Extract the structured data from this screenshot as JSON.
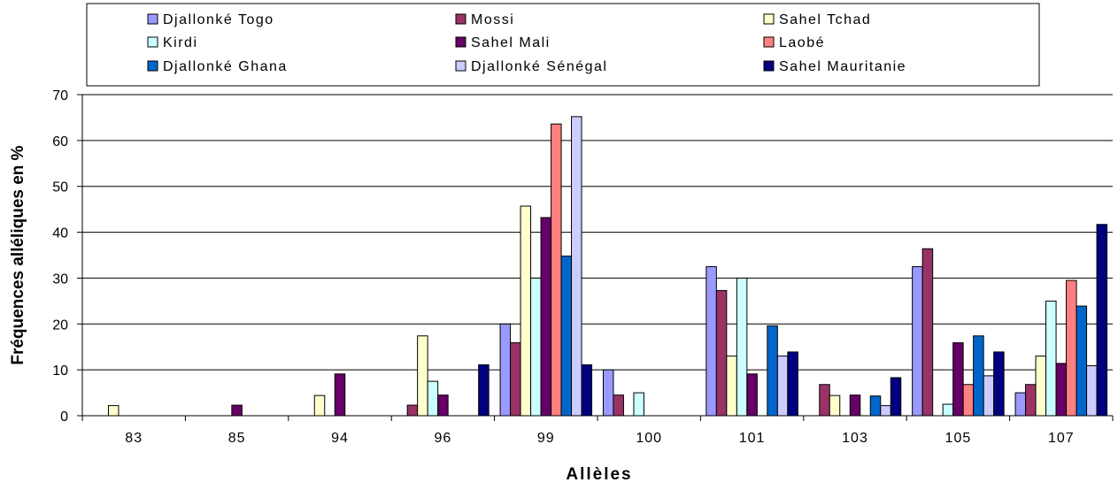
{
  "chart_data": {
    "type": "bar",
    "title": "",
    "xlabel": "Allèles",
    "ylabel": "Fréquences alléliques en %",
    "ylim": [
      0,
      70
    ],
    "yticks": [
      "0",
      "10",
      "20",
      "30",
      "40",
      "50",
      "60",
      "70"
    ],
    "categories": [
      "83",
      "85",
      "94",
      "96",
      "99",
      "100",
      "101",
      "103",
      "105",
      "107"
    ],
    "grid": true,
    "legend_position": "top",
    "series": [
      {
        "name": "Djallonké Togo",
        "color": "#9999ff",
        "values": [
          0,
          0,
          0,
          0,
          20,
          10,
          32.5,
          0,
          32.5,
          5
        ]
      },
      {
        "name": "Mossi",
        "color": "#993366",
        "values": [
          0,
          0,
          0,
          2.3,
          15.9,
          4.5,
          27.3,
          6.8,
          36.4,
          6.8
        ]
      },
      {
        "name": "Sahel Tchad",
        "color": "#ffffcc",
        "values": [
          2.2,
          0,
          4.4,
          17.4,
          45.7,
          0,
          13.0,
          4.4,
          0,
          13.0
        ]
      },
      {
        "name": "Kirdi",
        "color": "#ccffff",
        "values": [
          0,
          0,
          0,
          7.5,
          30,
          5,
          30,
          0,
          2.5,
          25
        ]
      },
      {
        "name": "Sahel Mali",
        "color": "#660066",
        "values": [
          0,
          2.3,
          9.1,
          4.5,
          43.2,
          0,
          9.1,
          4.5,
          15.9,
          11.4
        ]
      },
      {
        "name": "Laobé",
        "color": "#ff8080",
        "values": [
          0,
          0,
          0,
          0,
          63.6,
          0,
          0,
          0,
          6.8,
          29.5
        ]
      },
      {
        "name": "Djallonké Ghana",
        "color": "#0066cc",
        "values": [
          0,
          0,
          0,
          0,
          34.8,
          0,
          19.6,
          4.3,
          17.4,
          23.9
        ]
      },
      {
        "name": "Djallonké Sénégal",
        "color": "#ccccff",
        "values": [
          0,
          0,
          0,
          0,
          65.2,
          0,
          13.0,
          2.2,
          8.7,
          10.9
        ]
      },
      {
        "name": "Sahel Mauritanie",
        "color": "#000080",
        "values": [
          0,
          0,
          0,
          11.1,
          11.1,
          0,
          13.9,
          8.3,
          13.9,
          41.7
        ]
      }
    ]
  }
}
